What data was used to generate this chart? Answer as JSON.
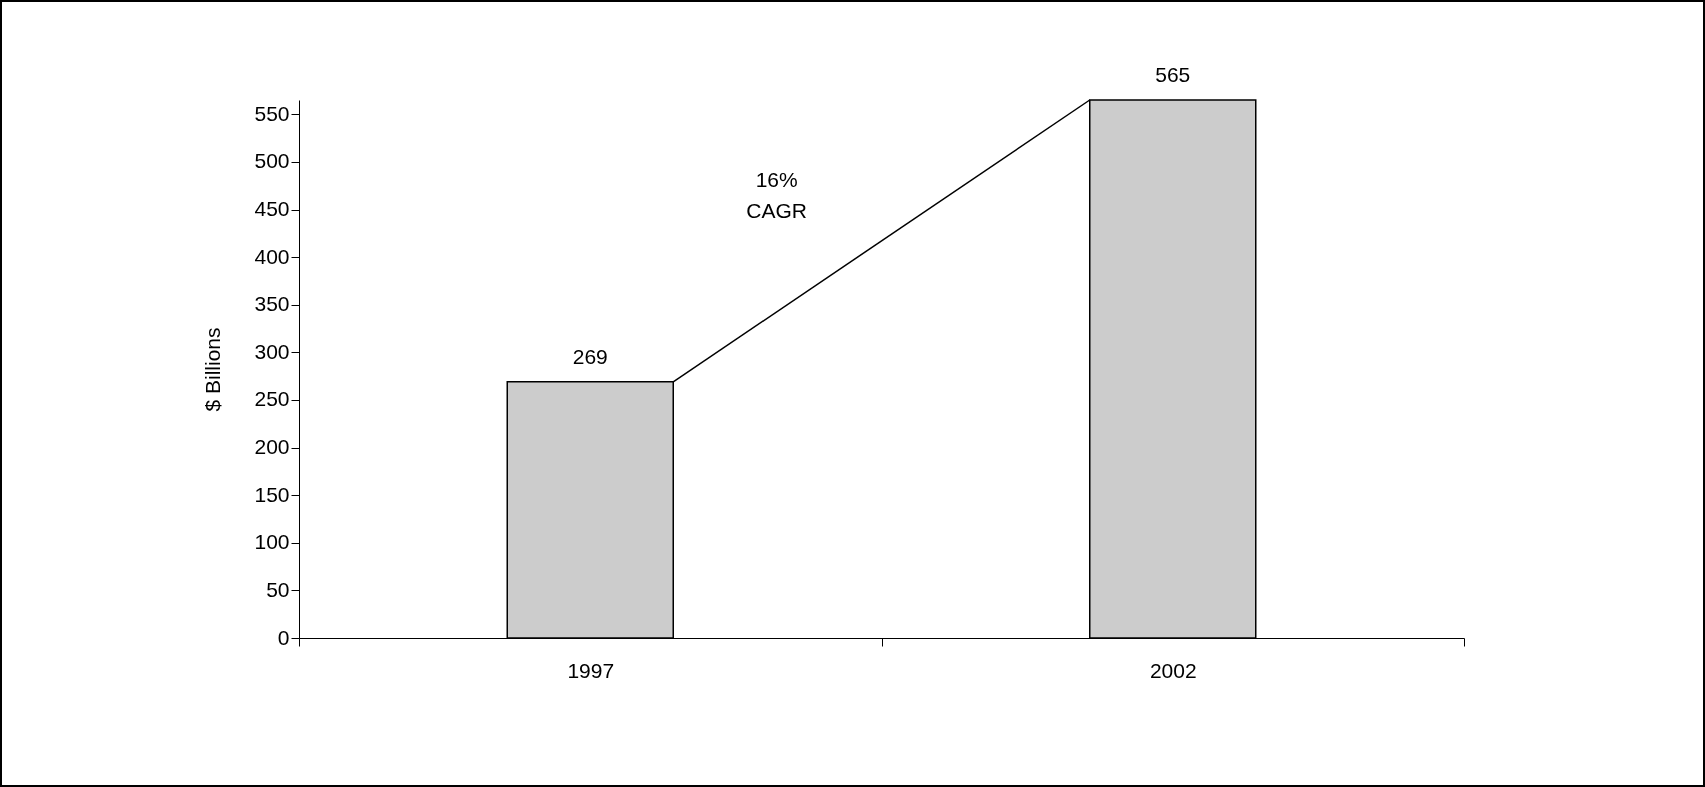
{
  "chart_data": {
    "type": "bar",
    "categories": [
      "1997",
      "2002"
    ],
    "values": [
      269,
      565
    ],
    "color": "#cccccc",
    "ylabel": "$ Billions",
    "ylim": [
      0,
      565
    ],
    "yticks": [
      0,
      50,
      100,
      150,
      200,
      250,
      300,
      350,
      400,
      450,
      500,
      550
    ],
    "data_labels": true,
    "grid": false,
    "annotations": [
      "16% CAGR"
    ]
  }
}
